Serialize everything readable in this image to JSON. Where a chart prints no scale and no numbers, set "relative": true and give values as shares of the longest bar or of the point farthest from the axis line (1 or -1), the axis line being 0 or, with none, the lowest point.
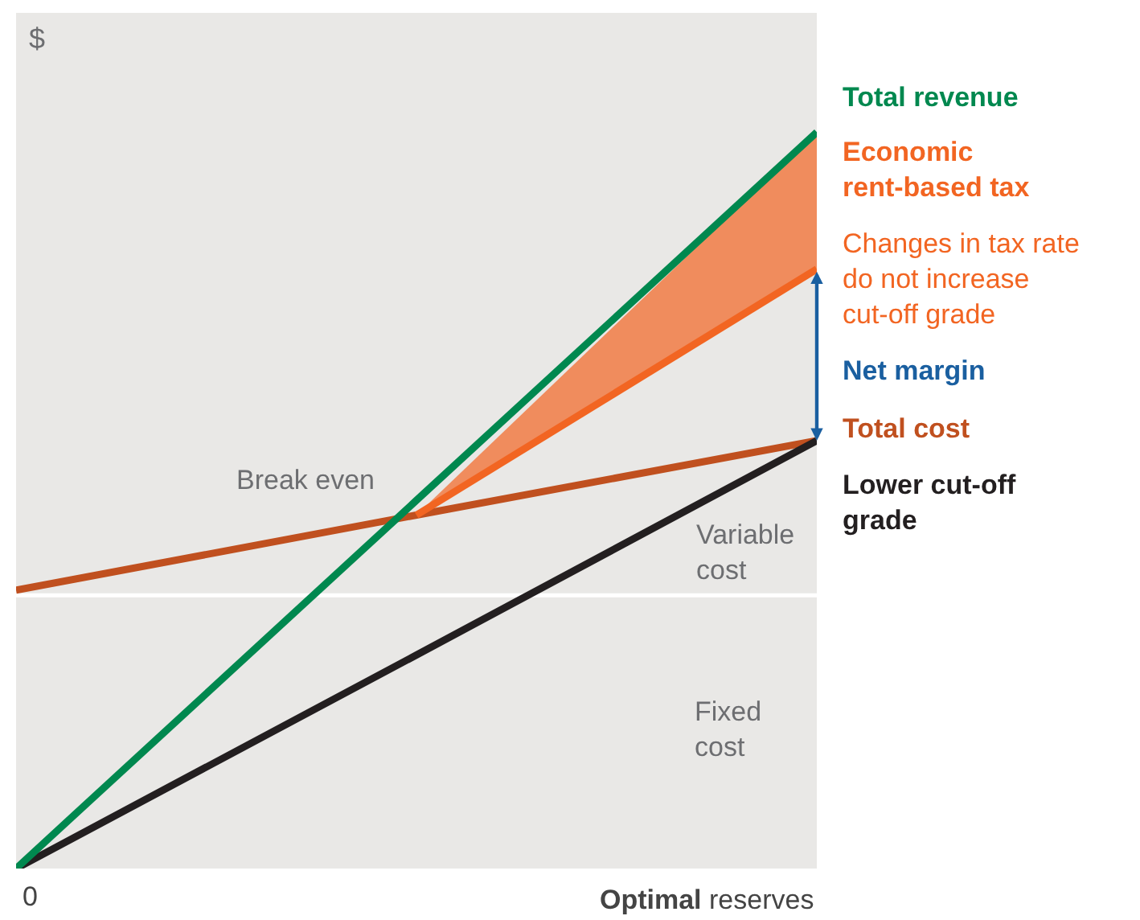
{
  "chart_data": {
    "type": "line",
    "relative": true,
    "categories": [
      null,
      null,
      null
    ],
    "xlabel": "Optimal reserves",
    "ylabel": "$",
    "series": [
      {
        "name": "Total revenue",
        "color": "#00884f",
        "values": [
          0,
          0.5,
          1
        ]
      },
      {
        "name": "Economic rent-based tax",
        "color": "#f26522",
        "values": [
          null,
          0.48,
          0.814
        ],
        "lower": [
          null,
          0.48,
          0.814
        ],
        "upper": [
          null,
          0.48,
          1
        ]
      },
      {
        "name": "Total cost",
        "color": "#c0501f",
        "values": [
          0.378,
          0.48,
          0.581
        ]
      },
      {
        "name": "Lower cut-off grade",
        "color": "#231f20",
        "values": [
          0,
          0.29,
          0.581
        ]
      }
    ],
    "ref_lines": [
      {
        "axis": "y",
        "value": 0.371,
        "color": "#ffffff"
      }
    ],
    "annotations": [
      "Break even",
      "Variable cost",
      "Fixed cost",
      "Changes in tax rate do not increase cut-off grade",
      "Net margin",
      "0"
    ],
    "legend": false,
    "grid": false
  }
}
